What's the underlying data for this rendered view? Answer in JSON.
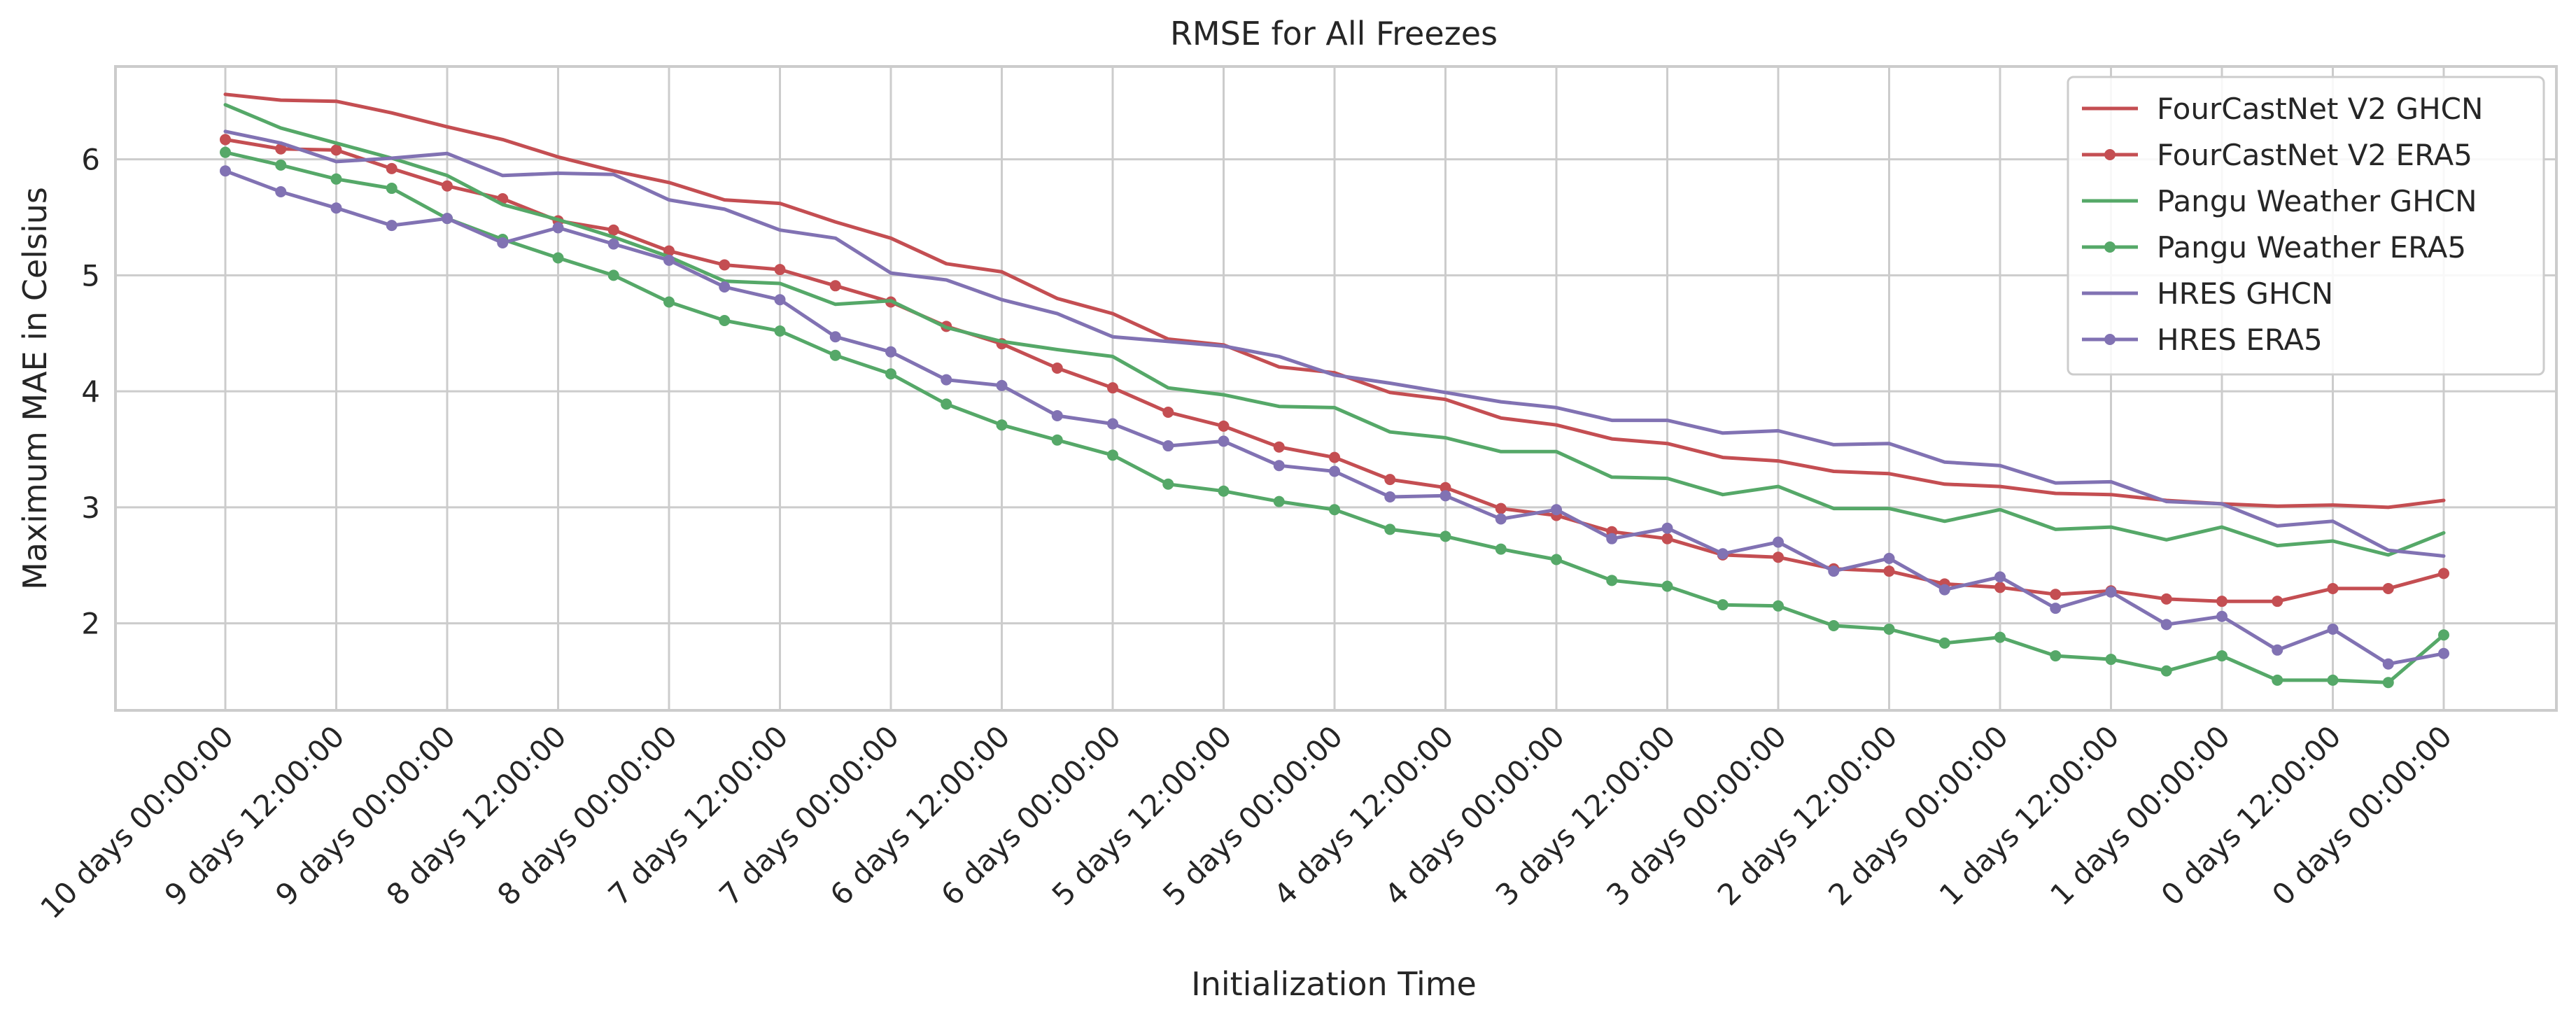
{
  "chart_data": {
    "type": "line",
    "title": "RMSE for All Freezes",
    "xlabel": "Initialization Time",
    "ylabel": "Maximum MAE in Celsius",
    "ylim": [
      1.25,
      6.8
    ],
    "yticks": [
      2,
      3,
      4,
      5,
      6
    ],
    "grid": true,
    "legend_position": "top-right",
    "x_tick_labels": [
      "10 days 00:00:00",
      "9 days 12:00:00",
      "9 days 00:00:00",
      "8 days 12:00:00",
      "8 days 00:00:00",
      "7 days 12:00:00",
      "7 days 00:00:00",
      "6 days 12:00:00",
      "6 days 00:00:00",
      "5 days 12:00:00",
      "5 days 00:00:00",
      "4 days 12:00:00",
      "4 days 00:00:00",
      "3 days 12:00:00",
      "3 days 00:00:00",
      "2 days 12:00:00",
      "2 days 00:00:00",
      "1 days 12:00:00",
      "1 days 00:00:00",
      "0 days 12:00:00",
      "0 days 00:00:00"
    ],
    "series": [
      {
        "name": "FourCastNet V2 GHCN",
        "color": "#c44e52",
        "marker": false,
        "values": [
          6.56,
          6.51,
          6.5,
          6.4,
          6.28,
          6.17,
          6.02,
          5.9,
          5.8,
          5.65,
          5.62,
          5.46,
          5.32,
          5.1,
          5.03,
          4.8,
          4.67,
          4.45,
          4.4,
          4.21,
          4.16,
          3.99,
          3.93,
          3.77,
          3.71,
          3.59,
          3.55,
          3.43,
          3.4,
          3.31,
          3.29,
          3.2,
          3.18,
          3.12,
          3.11,
          3.06,
          3.03,
          3.01,
          3.02,
          3.0,
          3.06
        ]
      },
      {
        "name": "FourCastNet V2 ERA5",
        "color": "#c44e52",
        "marker": true,
        "values": [
          6.17,
          6.09,
          6.08,
          5.92,
          5.77,
          5.66,
          5.47,
          5.39,
          5.21,
          5.09,
          5.05,
          4.91,
          4.77,
          4.56,
          4.41,
          4.2,
          4.03,
          3.82,
          3.7,
          3.52,
          3.43,
          3.24,
          3.17,
          2.99,
          2.93,
          2.79,
          2.73,
          2.59,
          2.57,
          2.47,
          2.45,
          2.34,
          2.31,
          2.25,
          2.28,
          2.21,
          2.19,
          2.19,
          2.3,
          2.3,
          2.43
        ]
      },
      {
        "name": "Pangu Weather GHCN",
        "color": "#55a868",
        "marker": false,
        "values": [
          6.47,
          6.27,
          6.14,
          6.01,
          5.86,
          5.61,
          5.48,
          5.33,
          5.16,
          4.95,
          4.93,
          4.75,
          4.78,
          4.55,
          4.43,
          4.36,
          4.3,
          4.03,
          3.97,
          3.87,
          3.86,
          3.65,
          3.6,
          3.48,
          3.48,
          3.26,
          3.25,
          3.11,
          3.18,
          2.99,
          2.99,
          2.88,
          2.98,
          2.81,
          2.83,
          2.72,
          2.83,
          2.67,
          2.71,
          2.59,
          2.78
        ]
      },
      {
        "name": "Pangu Weather ERA5",
        "color": "#55a868",
        "marker": true,
        "values": [
          6.06,
          5.95,
          5.83,
          5.75,
          5.49,
          5.31,
          5.15,
          5.0,
          4.77,
          4.61,
          4.52,
          4.31,
          4.15,
          3.89,
          3.71,
          3.58,
          3.45,
          3.2,
          3.14,
          3.05,
          2.98,
          2.81,
          2.75,
          2.64,
          2.55,
          2.37,
          2.32,
          2.16,
          2.15,
          1.98,
          1.95,
          1.83,
          1.88,
          1.72,
          1.69,
          1.59,
          1.72,
          1.51,
          1.51,
          1.49,
          1.9
        ]
      },
      {
        "name": "HRES GHCN",
        "color": "#8172b3",
        "marker": false,
        "values": [
          6.24,
          6.14,
          5.98,
          6.01,
          6.05,
          5.86,
          5.88,
          5.87,
          5.65,
          5.57,
          5.39,
          5.32,
          5.02,
          4.96,
          4.79,
          4.67,
          4.47,
          4.43,
          4.39,
          4.3,
          4.14,
          4.07,
          3.99,
          3.91,
          3.86,
          3.75,
          3.75,
          3.64,
          3.66,
          3.54,
          3.55,
          3.39,
          3.36,
          3.21,
          3.22,
          3.05,
          3.03,
          2.84,
          2.88,
          2.63,
          2.58
        ]
      },
      {
        "name": "HRES ERA5",
        "color": "#8172b3",
        "marker": true,
        "values": [
          5.9,
          5.72,
          5.58,
          5.43,
          5.49,
          5.28,
          5.41,
          5.27,
          5.13,
          4.9,
          4.79,
          4.47,
          4.34,
          4.1,
          4.05,
          3.79,
          3.72,
          3.53,
          3.57,
          3.36,
          3.31,
          3.09,
          3.1,
          2.9,
          2.98,
          2.73,
          2.82,
          2.6,
          2.7,
          2.45,
          2.56,
          2.29,
          2.4,
          2.13,
          2.27,
          1.99,
          2.06,
          1.77,
          1.95,
          1.65,
          1.74
        ]
      }
    ]
  }
}
